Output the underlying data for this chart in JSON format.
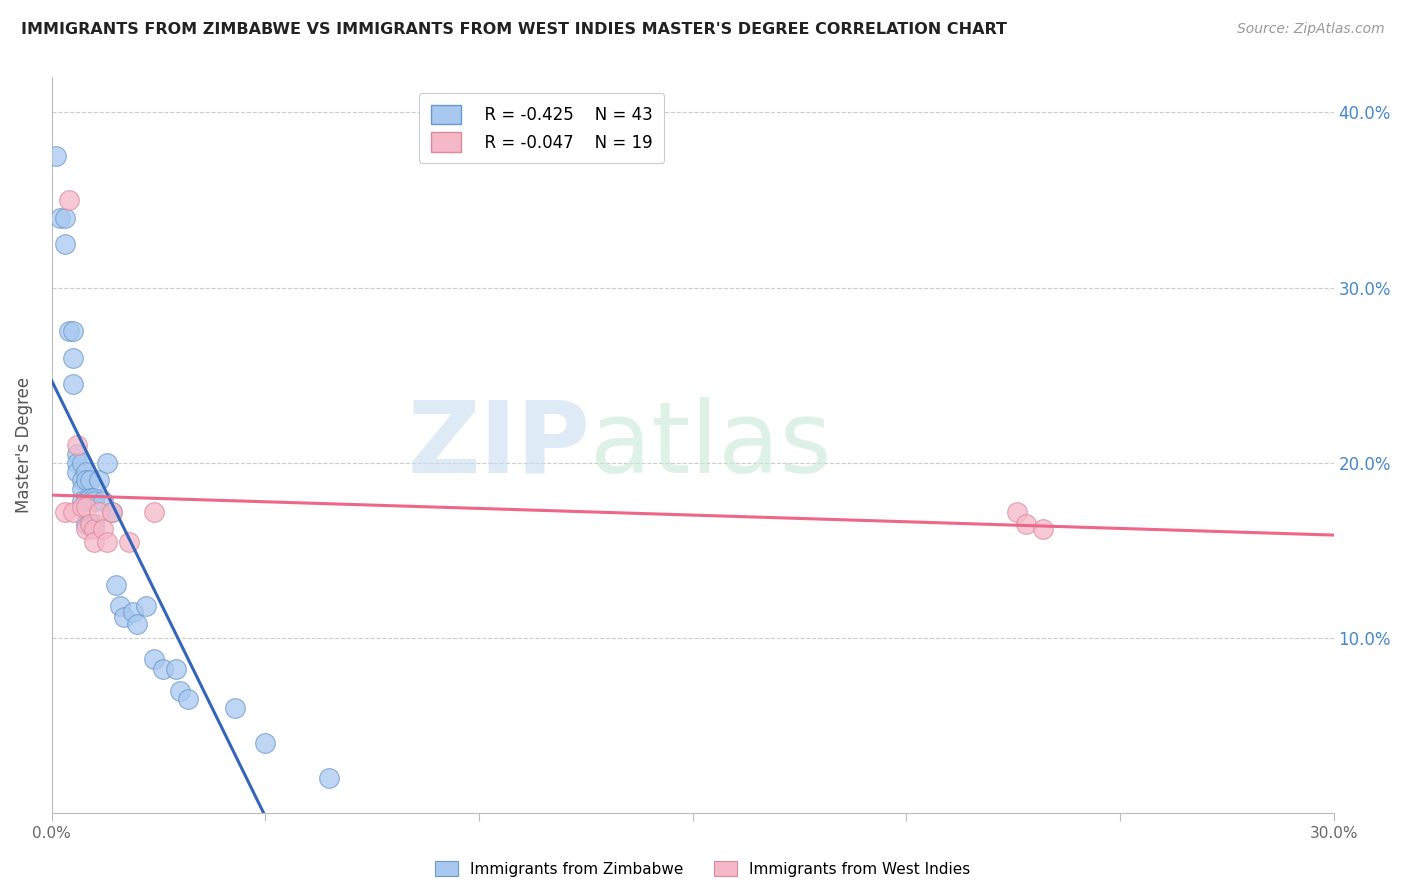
{
  "title": "IMMIGRANTS FROM ZIMBABWE VS IMMIGRANTS FROM WEST INDIES MASTER'S DEGREE CORRELATION CHART",
  "source": "Source: ZipAtlas.com",
  "ylabel": "Master's Degree",
  "xlim": [
    0.0,
    0.3
  ],
  "ylim": [
    0.0,
    0.42
  ],
  "yticks_right_vals": [
    0.1,
    0.2,
    0.3,
    0.4
  ],
  "ytick_labels_right": [
    "10.0%",
    "20.0%",
    "30.0%",
    "40.0%"
  ],
  "legend_r1": "R = -0.425",
  "legend_n1": "N = 43",
  "legend_r2": "R = -0.047",
  "legend_n2": "N = 19",
  "blue_scatter": "#a8c8f0",
  "blue_edge": "#6699cc",
  "pink_scatter": "#f5b8c8",
  "pink_edge": "#dd8899",
  "trendline_blue": "#3366bb",
  "trendline_pink": "#ee6688",
  "zimbabwe_x": [
    0.001,
    0.002,
    0.003,
    0.003,
    0.004,
    0.005,
    0.005,
    0.005,
    0.006,
    0.006,
    0.006,
    0.007,
    0.007,
    0.007,
    0.007,
    0.008,
    0.008,
    0.008,
    0.008,
    0.009,
    0.009,
    0.009,
    0.01,
    0.01,
    0.01,
    0.011,
    0.012,
    0.013,
    0.014,
    0.015,
    0.016,
    0.017,
    0.019,
    0.02,
    0.022,
    0.024,
    0.026,
    0.029,
    0.03,
    0.032,
    0.043,
    0.05,
    0.065
  ],
  "zimbabwe_y": [
    0.375,
    0.34,
    0.34,
    0.325,
    0.275,
    0.275,
    0.26,
    0.245,
    0.205,
    0.2,
    0.195,
    0.2,
    0.19,
    0.185,
    0.178,
    0.195,
    0.19,
    0.178,
    0.165,
    0.19,
    0.18,
    0.165,
    0.18,
    0.178,
    0.165,
    0.19,
    0.178,
    0.2,
    0.172,
    0.13,
    0.118,
    0.112,
    0.115,
    0.108,
    0.118,
    0.088,
    0.082,
    0.082,
    0.07,
    0.065,
    0.06,
    0.04,
    0.02
  ],
  "westindies_x": [
    0.003,
    0.004,
    0.005,
    0.006,
    0.007,
    0.008,
    0.008,
    0.009,
    0.01,
    0.01,
    0.011,
    0.012,
    0.013,
    0.014,
    0.018,
    0.024,
    0.226,
    0.228,
    0.232
  ],
  "westindies_y": [
    0.172,
    0.35,
    0.172,
    0.21,
    0.175,
    0.175,
    0.162,
    0.165,
    0.162,
    0.155,
    0.172,
    0.162,
    0.155,
    0.172,
    0.155,
    0.172,
    0.172,
    0.165,
    0.162
  ]
}
